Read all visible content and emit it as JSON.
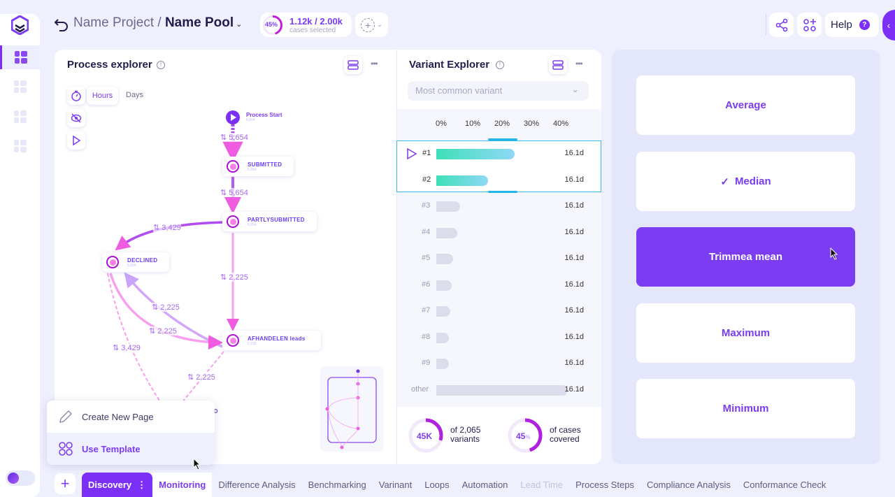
{
  "header": {
    "project": "Name Project",
    "separator": "/",
    "pool": "Name Pool",
    "selection_percent": "45%",
    "selection_fraction": 0.45,
    "cases_count": "1.12k / 2.00k",
    "cases_label": "cases selected",
    "help": "Help"
  },
  "process_explorer": {
    "title": "Process explorer",
    "time_units": [
      "Hours",
      "Days"
    ],
    "active_unit": "Hours",
    "nodes": [
      {
        "name": "Process Start",
        "count": "5,654"
      },
      {
        "name": "SUBMITTED",
        "count": "5,654"
      },
      {
        "name": "PARTLYSUBMITTED",
        "count": "5,654"
      },
      {
        "name": "DECLINED",
        "count": "5,654"
      },
      {
        "name": "AFHANDELEN leads",
        "count": "2,225"
      },
      {
        "name": "ND",
        "count": ""
      }
    ],
    "edges": [
      "5,654",
      "5,654",
      "3,429",
      "2,225",
      "2,225",
      "2,225",
      "3,429",
      "2,225"
    ]
  },
  "variant_explorer": {
    "title": "Variant Explorer",
    "dropdown_placeholder": "Most common variant",
    "axis_ticks": [
      "0%",
      "10%",
      "20%",
      "30%",
      "40%"
    ],
    "rows": [
      {
        "rank": "#1",
        "share": 25,
        "duration": "16.1d"
      },
      {
        "rank": "#2",
        "share": 16,
        "duration": "16.1d"
      },
      {
        "rank": "#3",
        "share": 6.5,
        "duration": "16.1d"
      },
      {
        "rank": "#4",
        "share": 5.5,
        "duration": "16.1d"
      },
      {
        "rank": "#5",
        "share": 4,
        "duration": "16.1d"
      },
      {
        "rank": "#6",
        "share": 3.5,
        "duration": "16.1d"
      },
      {
        "rank": "#7",
        "share": 3,
        "duration": "16.1d"
      },
      {
        "rank": "#8",
        "share": 2.5,
        "duration": "16.1d"
      },
      {
        "rank": "#9",
        "share": 2.5,
        "duration": "16.1d"
      },
      {
        "rank": "other",
        "share": 43,
        "duration": "16.1d"
      }
    ],
    "summary": [
      {
        "value": "45K",
        "text1": "of 2,065",
        "text2": "variants",
        "fraction": 0.3
      },
      {
        "value": "45",
        "unit": "%",
        "text1": "of cases",
        "text2": "covered",
        "fraction": 0.45
      }
    ]
  },
  "aggregations": {
    "items": [
      "Average",
      "Median",
      "Trimmea mean",
      "Maximum",
      "Minimum"
    ],
    "checked": "Median",
    "selected": "Trimmea mean"
  },
  "menu": {
    "items": [
      "Create New Page",
      "Use Template"
    ]
  },
  "tabs": {
    "items": [
      "Discovery",
      "Monitoring",
      "Difference Analysis",
      "Benchmarking",
      "Varinant",
      "Loops",
      "Automation",
      "Lead Time",
      "Process Steps",
      "Compliance Analysis",
      "Conformance Check"
    ],
    "active": "Monitoring",
    "disabled": "Lead Time"
  },
  "colors": {
    "accent": "#7b3cf2",
    "node_ring": "#b00cd8",
    "bar_top": "#3ee0b8"
  }
}
